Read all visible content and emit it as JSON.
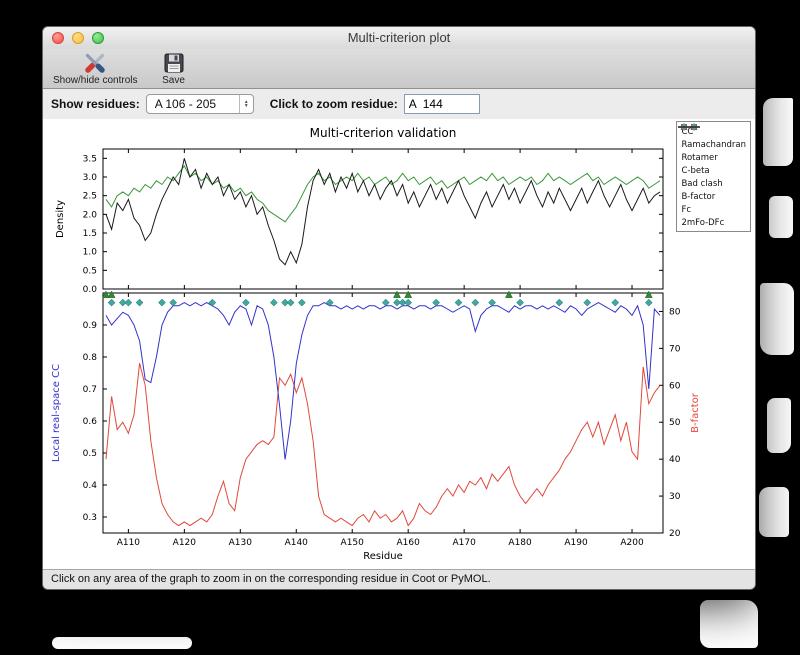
{
  "window": {
    "title": "Multi-criterion plot",
    "toolbar": {
      "show_hide_label": "Show/hide controls",
      "save_label": "Save"
    },
    "controls": {
      "show_residues_label": "Show residues:",
      "residue_range_value": "A 106 - 205",
      "zoom_label": "Click to zoom residue:",
      "zoom_value": "A  144"
    },
    "status_text": "Click on any area of the graph to zoom in on the corresponding residue in Coot or PyMOL."
  },
  "colors": {
    "cc_blue": "#3333cc",
    "bfactor_red": "#e0493c",
    "fc_green": "#3a9639",
    "model_black": "#1a1a1a",
    "bad_clash_teal": "#3fa8a0",
    "rotamer_green": "#2e8b2e",
    "cbeta_red": "#cc3b33"
  },
  "chart_data": {
    "type": "line",
    "title": "Multi-criterion validation",
    "xlabel": "Residue",
    "x_start": 106,
    "x_end": 205,
    "xticks": [
      110,
      120,
      130,
      140,
      150,
      160,
      170,
      180,
      190,
      200
    ],
    "xtick_labels": [
      "A110",
      "A120",
      "A130",
      "A140",
      "A150",
      "A160",
      "A170",
      "A180",
      "A190",
      "A200"
    ],
    "top": {
      "ylabel": "Density",
      "ylim": [
        0,
        3.75
      ],
      "yticks": [
        0.0,
        0.5,
        1.0,
        1.5,
        2.0,
        2.5,
        3.0,
        3.5
      ],
      "series": [
        {
          "name": "Fc",
          "color": "#3a9639",
          "values": [
            2.4,
            2.2,
            2.5,
            2.6,
            2.5,
            2.7,
            2.6,
            2.8,
            2.7,
            2.9,
            2.8,
            3.0,
            2.9,
            3.1,
            3.3,
            3.0,
            3.1,
            2.9,
            3.0,
            2.8,
            2.9,
            2.7,
            2.8,
            2.6,
            2.7,
            2.5,
            2.6,
            2.4,
            2.3,
            2.1,
            2.0,
            1.9,
            1.8,
            2.0,
            2.2,
            2.5,
            2.8,
            3.0,
            3.1,
            2.9,
            3.0,
            2.8,
            2.9,
            3.0,
            2.9,
            3.1,
            2.9,
            3.0,
            2.8,
            2.9,
            3.0,
            2.8,
            2.9,
            3.1,
            2.9,
            3.0,
            2.8,
            2.9,
            3.0,
            2.8,
            2.9,
            2.7,
            2.8,
            2.9,
            3.0,
            2.8,
            2.9,
            3.0,
            2.9,
            3.1,
            2.9,
            3.0,
            2.8,
            2.9,
            3.0,
            2.9,
            3.0,
            2.8,
            2.9,
            3.1,
            2.9,
            3.0,
            2.9,
            2.8,
            2.9,
            3.0,
            3.1,
            2.9,
            3.0,
            2.8,
            2.9,
            3.0,
            2.9,
            2.8,
            2.9,
            3.0,
            2.9,
            2.7,
            2.8,
            2.9
          ]
        },
        {
          "name": "2mFo-DFc",
          "color": "#1a1a1a",
          "values": [
            2.0,
            1.6,
            2.3,
            2.1,
            2.4,
            1.9,
            1.7,
            1.3,
            1.5,
            2.0,
            2.4,
            2.7,
            3.0,
            2.8,
            3.5,
            3.0,
            3.2,
            2.7,
            3.1,
            2.8,
            3.0,
            2.5,
            2.8,
            2.4,
            2.6,
            2.2,
            2.5,
            2.0,
            2.2,
            1.7,
            1.3,
            0.8,
            0.65,
            1.0,
            0.7,
            1.2,
            2.2,
            2.9,
            3.2,
            2.8,
            3.1,
            2.6,
            3.0,
            2.7,
            3.1,
            2.6,
            2.9,
            2.5,
            2.8,
            2.4,
            2.7,
            2.9,
            2.5,
            2.8,
            2.3,
            2.6,
            2.2,
            2.5,
            2.8,
            2.4,
            2.7,
            2.3,
            2.6,
            2.9,
            2.5,
            2.2,
            1.9,
            2.3,
            2.6,
            2.2,
            2.5,
            2.8,
            2.4,
            2.7,
            2.3,
            2.6,
            2.9,
            2.5,
            2.2,
            2.6,
            2.3,
            2.7,
            2.4,
            2.1,
            2.4,
            2.7,
            2.3,
            2.6,
            2.9,
            2.5,
            2.2,
            2.5,
            2.8,
            2.4,
            2.1,
            2.4,
            2.7,
            2.3,
            2.5,
            2.6
          ]
        }
      ]
    },
    "bottom": {
      "left_ylabel": "Local real-space CC",
      "left_ylim": [
        0.25,
        1.0
      ],
      "left_yticks": [
        0.3,
        0.4,
        0.5,
        0.6,
        0.7,
        0.8,
        0.9
      ],
      "right_ylabel": "B-factor",
      "right_ylim": [
        20,
        85
      ],
      "right_yticks": [
        20,
        30,
        40,
        50,
        60,
        70,
        80
      ],
      "cc": {
        "name": "CC",
        "color": "#3333cc",
        "values": [
          0.93,
          0.9,
          0.92,
          0.94,
          0.93,
          0.9,
          0.85,
          0.73,
          0.72,
          0.8,
          0.9,
          0.94,
          0.96,
          0.96,
          0.97,
          0.96,
          0.97,
          0.96,
          0.97,
          0.96,
          0.95,
          0.93,
          0.9,
          0.94,
          0.96,
          0.95,
          0.9,
          0.96,
          0.95,
          0.9,
          0.8,
          0.65,
          0.48,
          0.6,
          0.78,
          0.87,
          0.93,
          0.96,
          0.96,
          0.97,
          0.96,
          0.96,
          0.95,
          0.96,
          0.95,
          0.96,
          0.95,
          0.96,
          0.96,
          0.95,
          0.96,
          0.96,
          0.95,
          0.96,
          0.96,
          0.95,
          0.96,
          0.96,
          0.95,
          0.96,
          0.96,
          0.95,
          0.94,
          0.95,
          0.96,
          0.95,
          0.88,
          0.93,
          0.95,
          0.96,
          0.96,
          0.95,
          0.94,
          0.96,
          0.95,
          0.96,
          0.96,
          0.95,
          0.96,
          0.95,
          0.96,
          0.95,
          0.94,
          0.96,
          0.95,
          0.93,
          0.95,
          0.96,
          0.97,
          0.96,
          0.95,
          0.94,
          0.96,
          0.95,
          0.93,
          0.96,
          0.9,
          0.7,
          0.95,
          0.93
        ]
      },
      "bfactor": {
        "name": "B-factor",
        "color": "#e0493c",
        "values": [
          40,
          57,
          48,
          50,
          47,
          52,
          66,
          60,
          45,
          35,
          28,
          25,
          23,
          22,
          23,
          22,
          23,
          24,
          23,
          25,
          30,
          34,
          28,
          26,
          35,
          40,
          42,
          44,
          45,
          44,
          46,
          62,
          60,
          63,
          58,
          62,
          55,
          45,
          30,
          25,
          24,
          23,
          24,
          23,
          22,
          24,
          25,
          23,
          26,
          24,
          25,
          23,
          24,
          26,
          22,
          24,
          28,
          26,
          25,
          27,
          30,
          32,
          30,
          33,
          31,
          34,
          33,
          35,
          32,
          36,
          34,
          36,
          38,
          33,
          30,
          28,
          30,
          32,
          30,
          33,
          35,
          37,
          40,
          42,
          45,
          48,
          50,
          46,
          50,
          44,
          48,
          52,
          45,
          50,
          42,
          40,
          65,
          55,
          58,
          60
        ]
      },
      "markers": {
        "bad_clash": {
          "color": "#3fa8a0",
          "cc_y": 0.97,
          "residues": [
            107,
            109,
            110,
            112,
            116,
            118,
            125,
            131,
            136,
            138,
            139,
            141,
            146,
            156,
            158,
            159,
            160,
            165,
            169,
            172,
            175,
            180,
            187,
            192,
            197,
            203
          ]
        },
        "rotamer": {
          "color": "#2e8b2e",
          "cc_y": 0.995,
          "residues": [
            106,
            107,
            158,
            160,
            178,
            203
          ]
        }
      }
    },
    "legend": [
      {
        "label": "CC",
        "type": "line",
        "color": "#3333cc"
      },
      {
        "label": "Ramachandran",
        "type": "circle",
        "color": "#3333cc"
      },
      {
        "label": "Rotamer",
        "type": "triangle",
        "color": "#2e8b2e"
      },
      {
        "label": "C-beta",
        "type": "square",
        "color": "#cc3b33"
      },
      {
        "label": "Bad clash",
        "type": "diamond",
        "color": "#3fa8a0"
      },
      {
        "label": "B-factor",
        "type": "line",
        "color": "#e0493c"
      },
      {
        "label": "Fc",
        "type": "line",
        "color": "#3a9639"
      },
      {
        "label": "2mFo-DFc",
        "type": "line",
        "color": "#1a1a1a"
      }
    ]
  }
}
